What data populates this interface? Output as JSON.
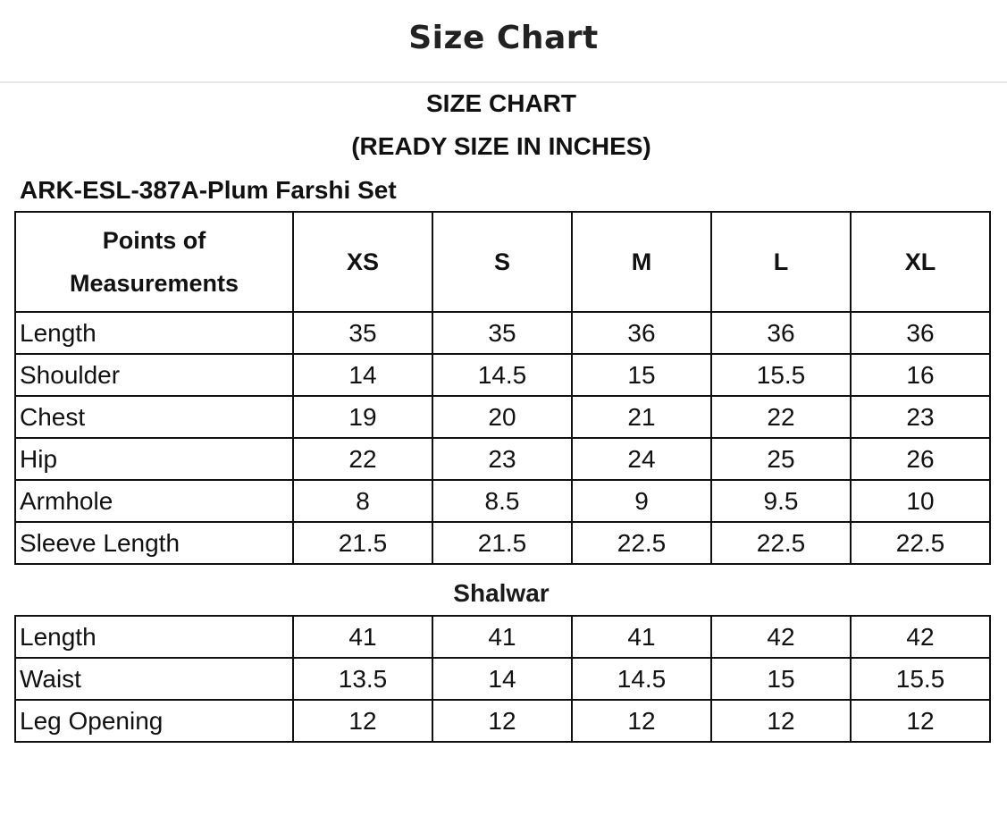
{
  "header": {
    "title": "Size Chart"
  },
  "chart": {
    "title": "SIZE CHART",
    "subtitle": "(READY SIZE IN INCHES)",
    "product": "ARK-ESL-387A-Plum Farshi Set",
    "columns": [
      "Points of Measurements",
      "XS",
      "S",
      "M",
      "L",
      "XL"
    ],
    "top_rows": [
      [
        "Length",
        "35",
        "35",
        "36",
        "36",
        "36"
      ],
      [
        "Shoulder",
        "14",
        "14.5",
        "15",
        "15.5",
        "16"
      ],
      [
        "Chest",
        "19",
        "20",
        "21",
        "22",
        "23"
      ],
      [
        "Hip",
        "22",
        "23",
        "24",
        "25",
        "26"
      ],
      [
        "Armhole",
        "8",
        "8.5",
        "9",
        "9.5",
        "10"
      ],
      [
        "Sleeve Length",
        "21.5",
        "21.5",
        "22.5",
        "22.5",
        "22.5"
      ]
    ],
    "section_label": "Shalwar",
    "shalwar_rows": [
      [
        "Length",
        "41",
        "41",
        "41",
        "42",
        "42"
      ],
      [
        "Waist",
        "13.5",
        "14",
        "14.5",
        "15",
        "15.5"
      ],
      [
        "Leg Opening",
        "12",
        "12",
        "12",
        "12",
        "12"
      ]
    ]
  }
}
